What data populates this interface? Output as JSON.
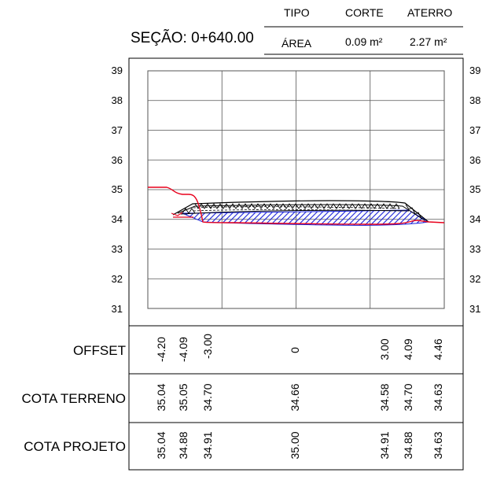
{
  "header": {
    "col_tipo": "TIPO",
    "col_corte": "CORTE",
    "col_aterro": "ATERRO",
    "row_area": "ÁREA",
    "area_corte": "0.09 m²",
    "area_aterro": "2.27 m²"
  },
  "section_title": "SEÇÃO: 0+640.00",
  "elevation_ticks": [
    "39",
    "38",
    "37",
    "36",
    "35",
    "34",
    "33",
    "32",
    "31"
  ],
  "rows": {
    "offset_label": "OFFSET",
    "terreno_label": "COTA TERRENO",
    "projeto_label": "COTA PROJETO"
  },
  "stations": [
    {
      "offset": "-4.20",
      "terreno": "35.04",
      "projeto": "35.04"
    },
    {
      "offset": "-4.09",
      "terreno": "35.05",
      "projeto": "34.88"
    },
    {
      "offset": "-3.00",
      "terreno": "34.70",
      "projeto": "34.91"
    },
    {
      "offset": "0",
      "terreno": "34.66",
      "projeto": "35.00"
    },
    {
      "offset": "3.00",
      "terreno": "34.58",
      "projeto": "34.91"
    },
    {
      "offset": "4.09",
      "terreno": "34.70",
      "projeto": "34.88"
    },
    {
      "offset": "4.46",
      "terreno": "34.63",
      "projeto": "34.63"
    }
  ],
  "colors": {
    "terrain": "#e8001c",
    "fill_hatch": "#1a22d8",
    "design": "#000000",
    "grid": "#555555"
  }
}
